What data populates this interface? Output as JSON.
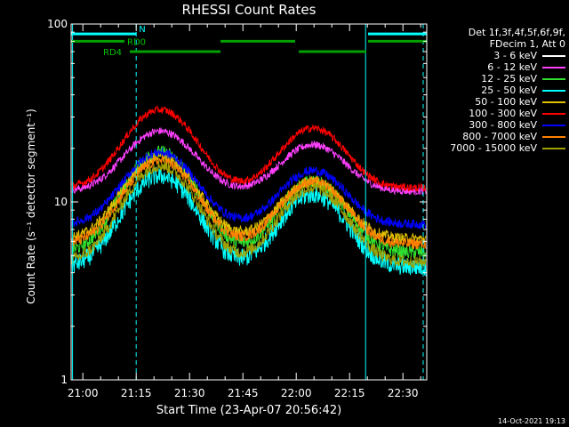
{
  "chart_data": {
    "type": "line",
    "title": "RHESSI Count Rates",
    "xlabel": "Start Time (23-Apr-07 20:56:42)",
    "ylabel": "Count Rate (s⁻¹ detector segment⁻¹)",
    "yscale": "log",
    "ylim": [
      1,
      100
    ],
    "xlim_minutes": [
      0,
      100
    ],
    "x_tick_labels": [
      "21:00",
      "21:15",
      "21:30",
      "21:45",
      "22:00",
      "22:15",
      "22:30"
    ],
    "x_tick_minutes": [
      3.3,
      18.3,
      33.3,
      48.3,
      63.3,
      78.3,
      93.3
    ],
    "y_tick_labels": [
      "1",
      "10",
      "100"
    ],
    "y_tick_values": [
      1,
      10,
      100
    ],
    "legend_header": [
      "Det 1f,3f,4f,5f,6f,9f,",
      "FDecim 1, Att 0"
    ],
    "series": [
      {
        "name": "3 - 6 keV",
        "color": "#000000",
        "base": 3.6,
        "peak1": 15,
        "peak2": 11,
        "noise": 0.18
      },
      {
        "name": "6 - 12 keV",
        "color": "#ff40ff",
        "base": 11.5,
        "peak1": 25,
        "peak2": 21,
        "noise": 0.05
      },
      {
        "name": "12 - 25 keV",
        "color": "#30e030",
        "base": 5.2,
        "peak1": 19,
        "peak2": 13,
        "noise": 0.09
      },
      {
        "name": "25 - 50 keV",
        "color": "#00ffff",
        "base": 4.3,
        "peak1": 14,
        "peak2": 11,
        "noise": 0.12
      },
      {
        "name": "50 - 100 keV",
        "color": "#e0c000",
        "base": 6.2,
        "peak1": 18,
        "peak2": 13,
        "noise": 0.07
      },
      {
        "name": "100 - 300 keV",
        "color": "#ff0000",
        "base": 12,
        "peak1": 33,
        "peak2": 26,
        "noise": 0.05
      },
      {
        "name": "300 - 800 keV",
        "color": "#0000ff",
        "base": 7.5,
        "peak1": 19,
        "peak2": 15,
        "noise": 0.06
      },
      {
        "name": "800 - 7000 keV",
        "color": "#ff8000",
        "base": 5.8,
        "peak1": 17,
        "peak2": 13,
        "noise": 0.07
      },
      {
        "name": "7000 - 15000 keV",
        "color": "#a0a000",
        "base": 4.6,
        "peak1": 16,
        "peak2": 12,
        "noise": 0.08
      }
    ],
    "flags": [
      {
        "label": "N",
        "color": "#00ffff",
        "y_level": 88,
        "spans": [
          [
            0,
            18.3
          ],
          [
            83.5,
            100
          ]
        ]
      },
      {
        "label": "RD0",
        "color": "#00a000",
        "y_level": 80,
        "spans": [
          [
            0,
            15
          ],
          [
            42,
            63
          ],
          [
            83.5,
            100
          ]
        ]
      },
      {
        "label": "RD4",
        "color": "#00a000",
        "y_level": 70,
        "spans": [
          [
            16.5,
            42
          ],
          [
            64,
            83
          ]
        ]
      }
    ],
    "vertical_lines": [
      {
        "x": 0.4,
        "style": "solid"
      },
      {
        "x": 18.3,
        "style": "dashed"
      },
      {
        "x": 82.8,
        "style": "solid"
      },
      {
        "x": 99,
        "style": "dashed"
      }
    ]
  },
  "timestamp": "14-Oct-2021 19:13"
}
